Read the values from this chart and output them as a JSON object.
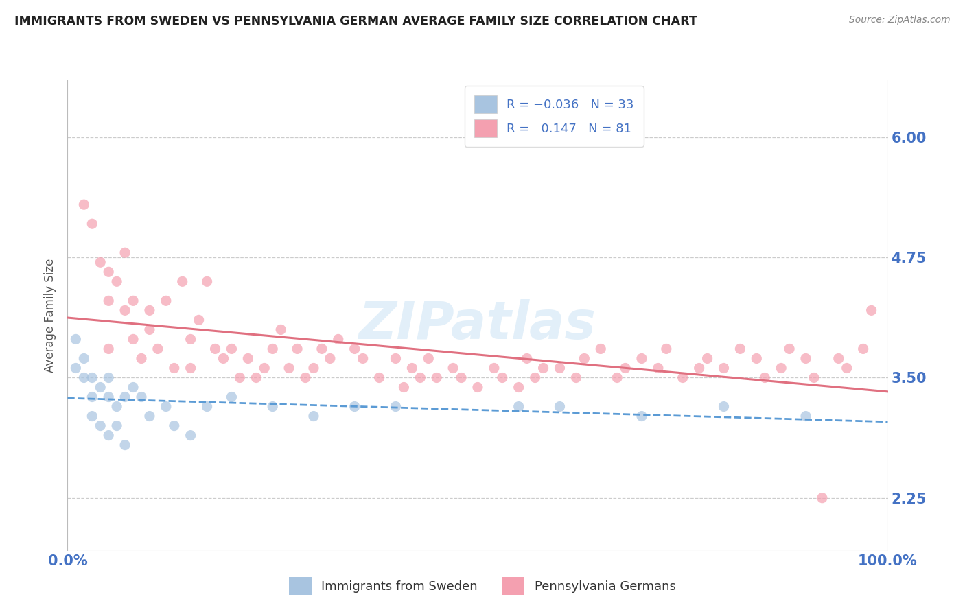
{
  "title": "IMMIGRANTS FROM SWEDEN VS PENNSYLVANIA GERMAN AVERAGE FAMILY SIZE CORRELATION CHART",
  "source": "Source: ZipAtlas.com",
  "ylabel": "Average Family Size",
  "yticks": [
    2.25,
    3.5,
    4.75,
    6.0
  ],
  "xlim": [
    0,
    100
  ],
  "ylim": [
    1.7,
    6.6
  ],
  "series": [
    {
      "name": "Immigrants from Sweden",
      "R": -0.036,
      "N": 33,
      "color": "#a8c4e0",
      "trend_color": "#5b9bd5",
      "trend_style": "dashed",
      "x": [
        1,
        1,
        2,
        2,
        3,
        3,
        3,
        4,
        4,
        5,
        5,
        5,
        6,
        6,
        7,
        7,
        8,
        9,
        10,
        12,
        13,
        15,
        17,
        20,
        25,
        30,
        35,
        40,
        55,
        60,
        70,
        80,
        90
      ],
      "y": [
        3.9,
        3.6,
        3.7,
        3.5,
        3.5,
        3.3,
        3.1,
        3.4,
        3.0,
        3.5,
        3.3,
        2.9,
        3.2,
        3.0,
        3.3,
        2.8,
        3.4,
        3.3,
        3.1,
        3.2,
        3.0,
        2.9,
        3.2,
        3.3,
        3.2,
        3.1,
        3.2,
        3.2,
        3.2,
        3.2,
        3.1,
        3.2,
        3.1
      ]
    },
    {
      "name": "Pennsylvania Germans",
      "R": 0.147,
      "N": 81,
      "color": "#f4a0b0",
      "trend_color": "#e07080",
      "trend_style": "solid",
      "x": [
        2,
        3,
        4,
        5,
        5,
        5,
        6,
        7,
        7,
        8,
        8,
        9,
        10,
        10,
        11,
        12,
        13,
        14,
        15,
        15,
        16,
        17,
        18,
        19,
        20,
        21,
        22,
        23,
        24,
        25,
        26,
        27,
        28,
        29,
        30,
        31,
        32,
        33,
        35,
        36,
        38,
        40,
        41,
        42,
        43,
        44,
        45,
        47,
        48,
        50,
        52,
        53,
        55,
        56,
        57,
        58,
        60,
        62,
        63,
        65,
        67,
        68,
        70,
        72,
        73,
        75,
        77,
        78,
        80,
        82,
        84,
        85,
        87,
        88,
        90,
        91,
        92,
        94,
        95,
        97,
        98
      ],
      "y": [
        5.3,
        5.1,
        4.7,
        4.6,
        4.3,
        3.8,
        4.5,
        4.8,
        4.2,
        4.3,
        3.9,
        3.7,
        4.2,
        4.0,
        3.8,
        4.3,
        3.6,
        4.5,
        3.9,
        3.6,
        4.1,
        4.5,
        3.8,
        3.7,
        3.8,
        3.5,
        3.7,
        3.5,
        3.6,
        3.8,
        4.0,
        3.6,
        3.8,
        3.5,
        3.6,
        3.8,
        3.7,
        3.9,
        3.8,
        3.7,
        3.5,
        3.7,
        3.4,
        3.6,
        3.5,
        3.7,
        3.5,
        3.6,
        3.5,
        3.4,
        3.6,
        3.5,
        3.4,
        3.7,
        3.5,
        3.6,
        3.6,
        3.5,
        3.7,
        3.8,
        3.5,
        3.6,
        3.7,
        3.6,
        3.8,
        3.5,
        3.6,
        3.7,
        3.6,
        3.8,
        3.7,
        3.5,
        3.6,
        3.8,
        3.7,
        3.5,
        2.25,
        3.7,
        3.6,
        3.8,
        4.2
      ]
    }
  ],
  "watermark": "ZIPatlas",
  "bg_color": "#ffffff",
  "plot_bg_color": "#ffffff",
  "grid_color": "#cccccc",
  "title_color": "#222222",
  "tick_label_color": "#4472c4"
}
